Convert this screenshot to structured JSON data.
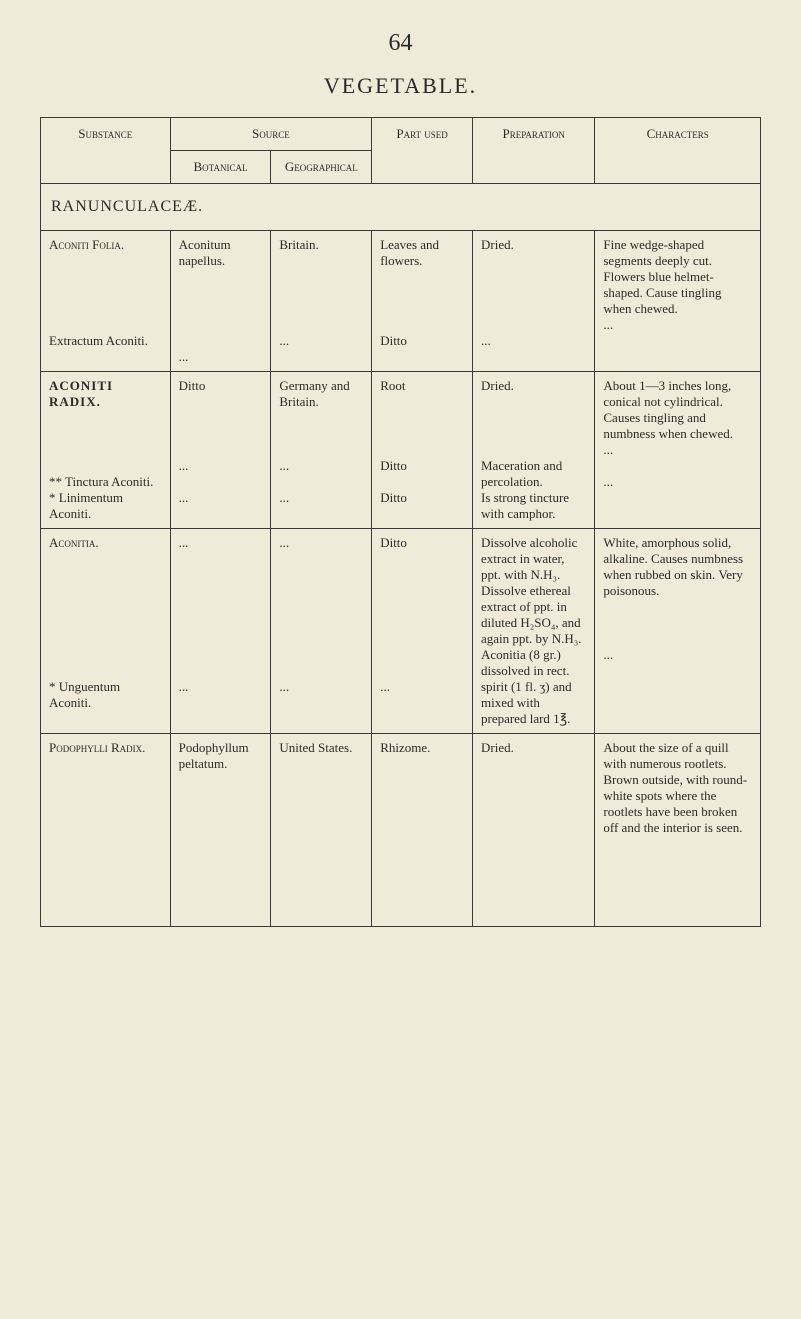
{
  "page_number": "64",
  "title": "VEGETABLE.",
  "headers": {
    "substance": "Substance",
    "source": "Source",
    "botanical": "Botanical",
    "geographical": "Geographical",
    "part_used": "Part used",
    "preparation": "Preparation",
    "characters": "Characters"
  },
  "family": "RANUNCULACEÆ.",
  "rows": [
    {
      "substance_main": "Aconiti Folia.",
      "substance_sub": "Extractum Aconiti.",
      "botanical": "Aconitum napellus.",
      "botanical_sub": "...",
      "geographical": "Britain.",
      "geographical_sub": "...",
      "part_used": "Leaves and flowers.",
      "part_used_sub": "Ditto",
      "preparation": "Dried.",
      "preparation_sub": "...",
      "characters": "Fine wedge-shaped segments deeply cut. Flowers blue helmet-shaped. Cause tingling when chewed.",
      "characters_sub": "..."
    },
    {
      "substance_main": "ACONITI RADIX.",
      "substance_sub1": "** Tinctura Aconiti.",
      "substance_sub2": "* Linimentum Aconiti.",
      "botanical": "Ditto",
      "botanical_sub1": "...",
      "botanical_sub2": "...",
      "geographical": "Germany and Britain.",
      "geographical_sub1": "...",
      "geographical_sub2": "...",
      "part_used": "Root",
      "part_used_sub1": "Ditto",
      "part_used_sub2": "Ditto",
      "preparation": "Dried.",
      "preparation_sub1": "Maceration and percolation.",
      "preparation_sub2": "Is strong tincture with camphor.",
      "characters": "About 1—3 inches long, conical not cylindrical. Causes tingling and numbness when chewed.",
      "characters_sub1": "...",
      "characters_sub2": "..."
    },
    {
      "substance_main": "Aconitia.",
      "substance_sub": "* Unguentum Aconiti.",
      "botanical": "...",
      "botanical_sub": "...",
      "geographical": "...",
      "geographical_sub": "...",
      "part_used": "Ditto",
      "part_used_sub": "...",
      "preparation": "Dissolve alcoholic extract in water, ppt. with N.H₃. Dissolve ethereal extract of ppt. in diluted H₂SO₄, and again ppt. by N.H₃.",
      "preparation_sub": "Aconitia (8 gr.) dissolved in rect. spirit (1 fl. ʒ) and mixed with prepared lard 1℥.",
      "characters": "White, amorphous solid, alkaline. Causes numbness when rubbed on skin. Very poisonous.",
      "characters_sub": "..."
    },
    {
      "substance_main": "Podophylli Radix.",
      "botanical": "Podophyllum peltatum.",
      "geographical": "United States.",
      "part_used": "Rhizome.",
      "preparation": "Dried.",
      "characters": "About the size of a quill with numerous rootlets. Brown outside, with round-white spots where the rootlets have been broken off and the interior is seen."
    }
  ]
}
